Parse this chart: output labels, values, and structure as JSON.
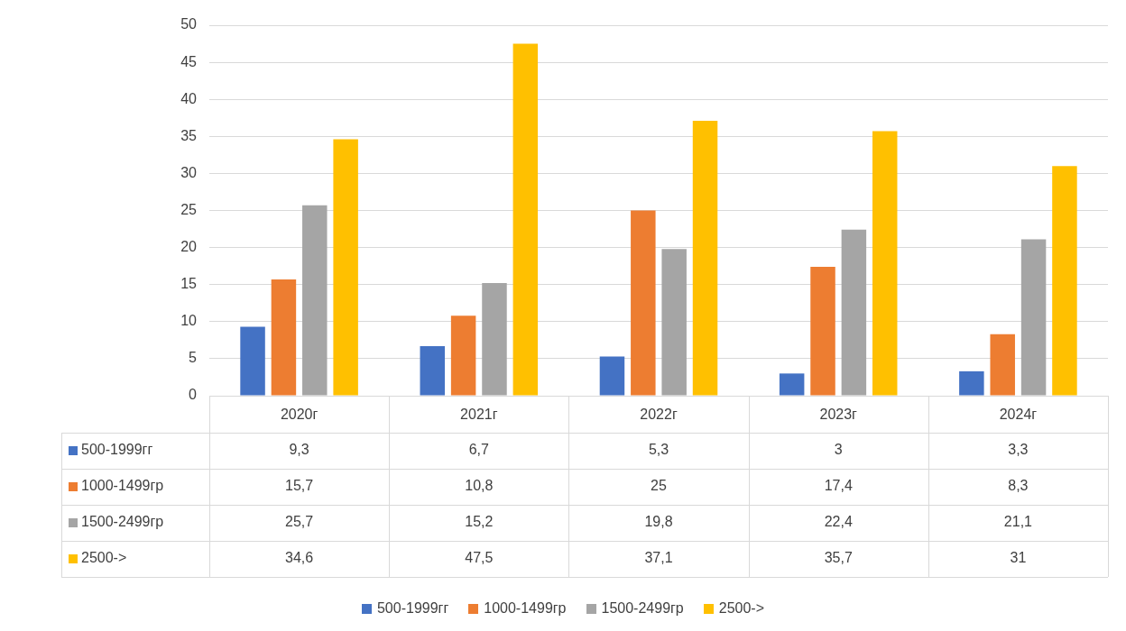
{
  "chart_data": {
    "type": "bar",
    "categories": [
      "2020г",
      "2021г",
      "2022г",
      "2023г",
      "2024г"
    ],
    "series": [
      {
        "name": "500-1999гг",
        "color": "#4472c4",
        "values": [
          9.3,
          6.7,
          5.3,
          3,
          3.3
        ],
        "value_labels": [
          "9,3",
          "6,7",
          "5,3",
          "3",
          "3,3"
        ]
      },
      {
        "name": "1000-1499гр",
        "color": "#ed7d31",
        "values": [
          15.7,
          10.8,
          25,
          17.4,
          8.3
        ],
        "value_labels": [
          "15,7",
          "10,8",
          "25",
          "17,4",
          "8,3"
        ]
      },
      {
        "name": "1500-2499гр",
        "color": "#a5a5a5",
        "values": [
          25.7,
          15.2,
          19.8,
          22.4,
          21.1
        ],
        "value_labels": [
          "25,7",
          "15,2",
          "19,8",
          "22,4",
          "21,1"
        ]
      },
      {
        "name": "2500->",
        "color": "#ffc000",
        "values": [
          34.6,
          47.5,
          37.1,
          35.7,
          31
        ],
        "value_labels": [
          "34,6",
          "47,5",
          "37,1",
          "35,7",
          "31"
        ]
      }
    ],
    "ylim": [
      0,
      50
    ],
    "yticks": [
      0,
      5,
      10,
      15,
      20,
      25,
      30,
      35,
      40,
      45,
      50
    ],
    "grid": "y",
    "legend": "bottom"
  }
}
